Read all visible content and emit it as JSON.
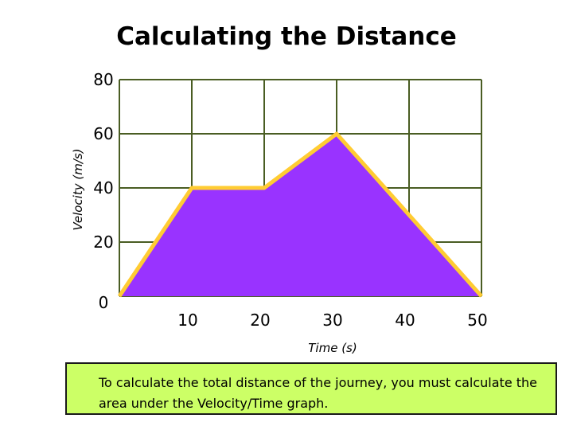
{
  "title": "Calculating the Distance",
  "note": "To calculate the total distance of the journey, you must calculate the area under the Velocity/Time graph.",
  "colors": {
    "fill": "#9933ff",
    "line": "#ffcc33",
    "grid": "#4a5d23",
    "note_bg": "#ccff66"
  },
  "chart_data": {
    "type": "area",
    "title": "Calculating the Distance",
    "xlabel": "Time (s)",
    "ylabel": "Velocity (m/s)",
    "xlim": [
      0,
      50
    ],
    "ylim": [
      0,
      80
    ],
    "x_ticks": [
      "10",
      "20",
      "30",
      "40",
      "50"
    ],
    "y_ticks": [
      "0",
      "20",
      "40",
      "60",
      "80"
    ],
    "grid": true,
    "series": [
      {
        "x": [
          0,
          10,
          20,
          30,
          40,
          50
        ],
        "y": [
          0,
          40,
          40,
          60,
          30,
          0
        ]
      }
    ]
  }
}
